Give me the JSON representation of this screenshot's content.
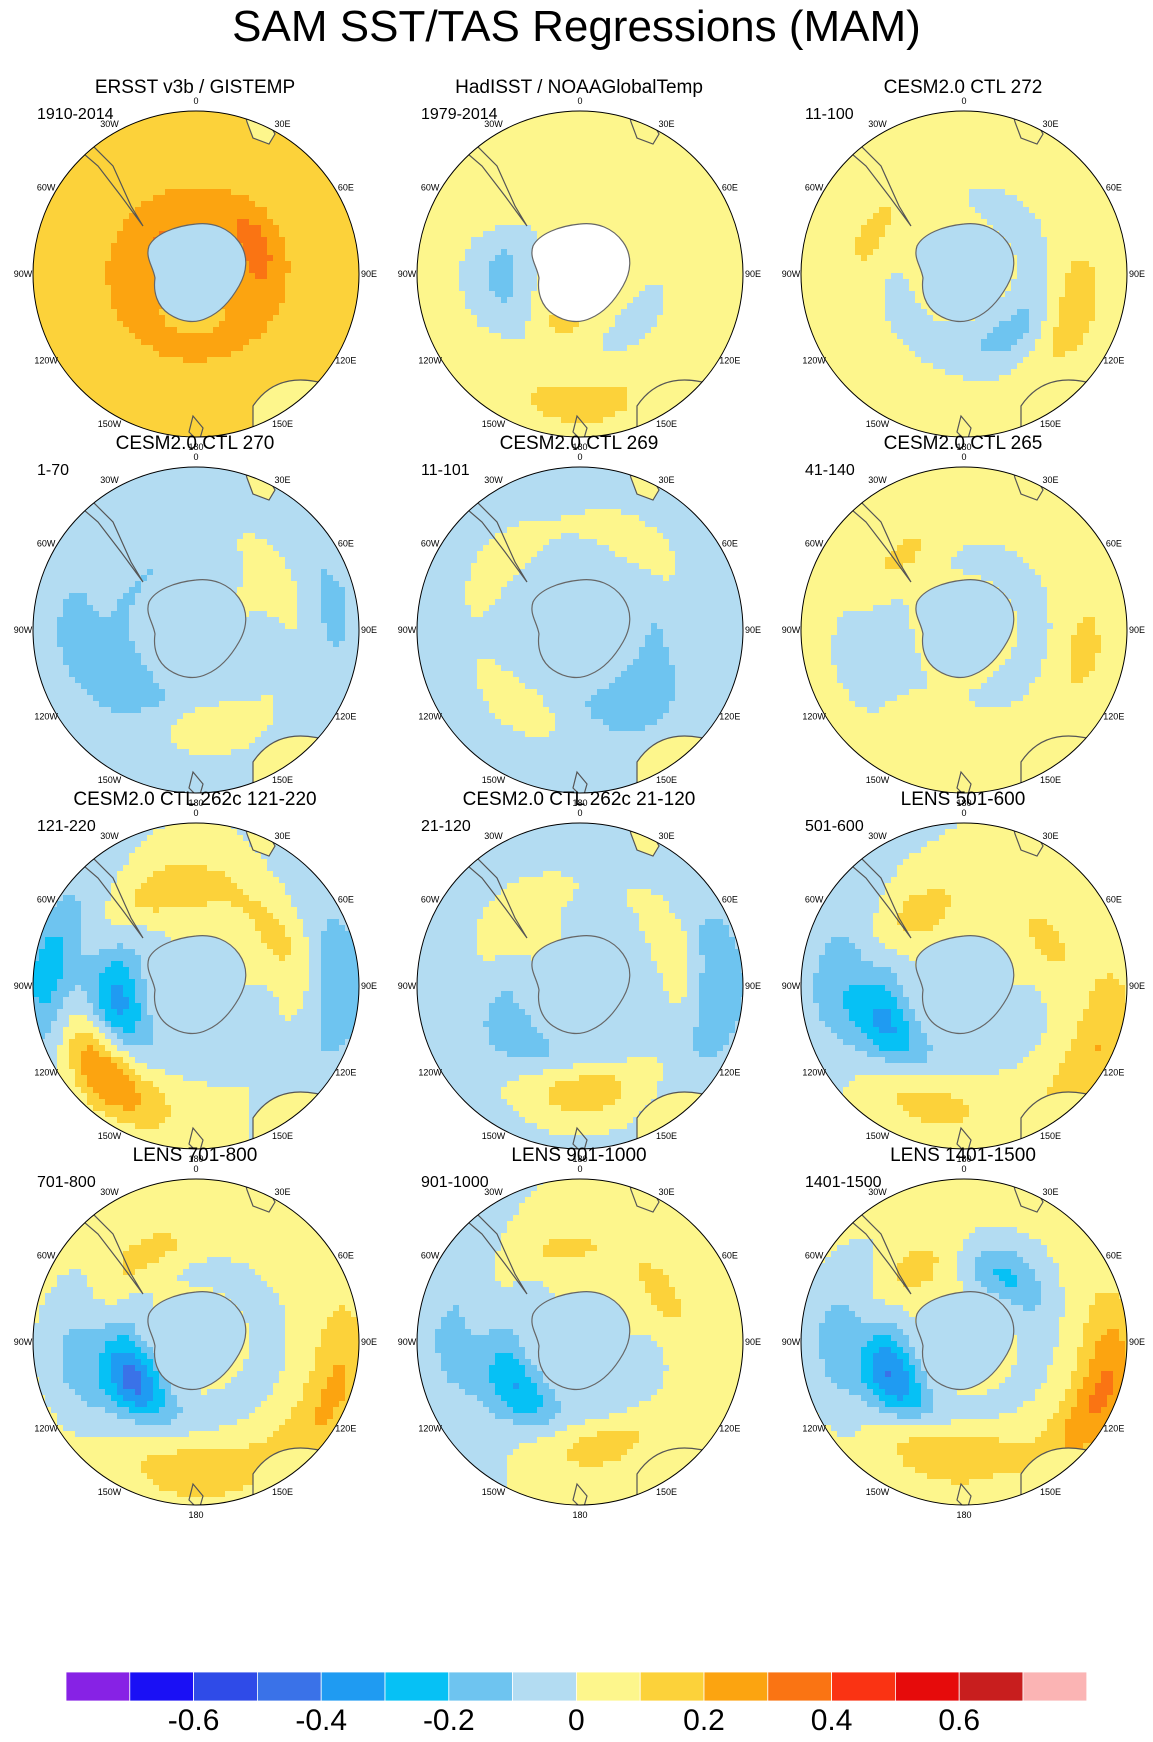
{
  "title": "SAM SST/TAS Regressions (MAM)",
  "lon_labels": [
    "0",
    "30E",
    "60E",
    "90E",
    "120E",
    "150E",
    "180",
    "150W",
    "120W",
    "90W",
    "60W",
    "30W"
  ],
  "chart_data": {
    "type": "heatmap",
    "title": "SAM SST/TAS Regressions (MAM)",
    "projection": "south-polar stereographic",
    "colorbar": {
      "colors": [
        "#8722e5",
        "#1a10f5",
        "#2f4be8",
        "#3a72e8",
        "#1f9bf2",
        "#06c1f5",
        "#6ec4f0",
        "#b3dcf2",
        "#fdf68c",
        "#fcd23a",
        "#fca410",
        "#fa7413",
        "#fa3313",
        "#e60b0b",
        "#c81e1e",
        "#fbb4b4"
      ],
      "levels": [
        -0.7,
        -0.6,
        -0.5,
        -0.4,
        -0.3,
        -0.2,
        -0.1,
        0,
        0.1,
        0.2,
        0.3,
        0.4,
        0.5,
        0.6,
        0.7
      ],
      "tick_labels": [
        "-0.6",
        "-0.4",
        "-0.2",
        "0",
        "0.2",
        "0.4",
        "0.6"
      ]
    },
    "panels": [
      {
        "title": "ERSST v3b / GISTEMP",
        "period": "1910-2014",
        "base": 0.15,
        "ring": 0.08,
        "anom": [
          [
            60,
            0.35,
            0.12
          ],
          [
            110,
            0.25,
            0.1
          ],
          [
            260,
            0.25,
            0.1
          ],
          [
            320,
            0.2,
            0.2
          ]
        ]
      },
      {
        "title": "HadISST / NOAAGlobalTemp",
        "period": "1979-2014",
        "base": 0.02,
        "ring": -0.05,
        "anom": [
          [
            200,
            0.35,
            0.12
          ],
          [
            270,
            0.5,
            -0.12
          ],
          [
            60,
            0.4,
            0.1
          ],
          [
            330,
            0.55,
            0.1
          ],
          [
            180,
            0.8,
            0.12
          ]
        ]
      },
      {
        "title": "CESM2.0 CTL 272",
        "period": "11-100",
        "base": 0.02,
        "ring": -0.06,
        "anom": [
          [
            140,
            0.5,
            -0.12
          ],
          [
            290,
            0.6,
            0.1
          ],
          [
            110,
            0.7,
            0.15
          ],
          [
            330,
            0.4,
            0.1
          ]
        ]
      },
      {
        "title": "CESM2.0 CTL 270",
        "period": "1-70",
        "base": -0.02,
        "ring": -0.08,
        "anom": [
          [
            60,
            0.5,
            0.14
          ],
          [
            170,
            0.55,
            0.12
          ],
          [
            230,
            0.6,
            -0.1
          ],
          [
            270,
            0.75,
            -0.1
          ],
          [
            80,
            0.85,
            -0.1
          ]
        ]
      },
      {
        "title": "CESM2.0 CTL 269",
        "period": "11-101",
        "base": -0.04,
        "ring": -0.06,
        "anom": [
          [
            30,
            0.6,
            0.1
          ],
          [
            220,
            0.55,
            0.12
          ],
          [
            310,
            0.6,
            0.1
          ],
          [
            140,
            0.6,
            -0.1
          ]
        ]
      },
      {
        "title": "CESM2.0 CTL 265",
        "period": "41-140",
        "base": 0.02,
        "ring": -0.06,
        "anom": [
          [
            320,
            0.55,
            0.12
          ],
          [
            250,
            0.6,
            -0.1
          ],
          [
            100,
            0.75,
            0.1
          ],
          [
            200,
            0.55,
            0.1
          ]
        ]
      },
      {
        "title": "CESM2.0 CTL 262c 121-220",
        "period": "121-220",
        "base": 0.0,
        "ring": -0.04,
        "anom": [
          [
            230,
            0.8,
            0.35
          ],
          [
            260,
            0.5,
            -0.3
          ],
          [
            270,
            0.9,
            -0.3
          ],
          [
            90,
            0.9,
            -0.18
          ],
          [
            350,
            0.6,
            0.2
          ],
          [
            60,
            0.55,
            0.14
          ]
        ]
      },
      {
        "title": "CESM2.0 CTL 262c 21-120",
        "period": "21-120",
        "base": -0.02,
        "ring": -0.06,
        "anom": [
          [
            180,
            0.65,
            0.2
          ],
          [
            230,
            0.55,
            -0.12
          ],
          [
            70,
            0.6,
            0.12
          ],
          [
            90,
            0.85,
            -0.18
          ],
          [
            320,
            0.5,
            0.14
          ]
        ]
      },
      {
        "title": "LENS 501-600",
        "period": "501-600",
        "base": 0.0,
        "ring": -0.04,
        "anom": [
          [
            245,
            0.55,
            -0.3
          ],
          [
            270,
            0.8,
            -0.15
          ],
          [
            200,
            0.75,
            0.15
          ],
          [
            60,
            0.55,
            0.14
          ],
          [
            330,
            0.5,
            0.18
          ],
          [
            115,
            0.9,
            0.2
          ]
        ]
      },
      {
        "title": "LENS 701-800",
        "period": "701-800",
        "base": 0.02,
        "ring": -0.06,
        "anom": [
          [
            240,
            0.45,
            -0.4
          ],
          [
            260,
            0.75,
            -0.15
          ],
          [
            180,
            0.8,
            0.15
          ],
          [
            110,
            0.9,
            0.2
          ],
          [
            330,
            0.6,
            0.12
          ]
        ]
      },
      {
        "title": "LENS 901-1000",
        "period": "901-1000",
        "base": 0.0,
        "ring": -0.06,
        "anom": [
          [
            235,
            0.5,
            -0.25
          ],
          [
            270,
            0.8,
            -0.12
          ],
          [
            170,
            0.65,
            0.15
          ],
          [
            60,
            0.55,
            0.15
          ],
          [
            350,
            0.55,
            0.14
          ]
        ]
      },
      {
        "title": "LENS 1401-1500",
        "period": "1401-1500",
        "base": 0.02,
        "ring": -0.05,
        "anom": [
          [
            245,
            0.5,
            -0.38
          ],
          [
            270,
            0.8,
            -0.15
          ],
          [
            190,
            0.7,
            0.18
          ],
          [
            110,
            0.9,
            0.3
          ],
          [
            330,
            0.5,
            0.16
          ],
          [
            30,
            0.5,
            -0.2
          ]
        ]
      }
    ]
  }
}
